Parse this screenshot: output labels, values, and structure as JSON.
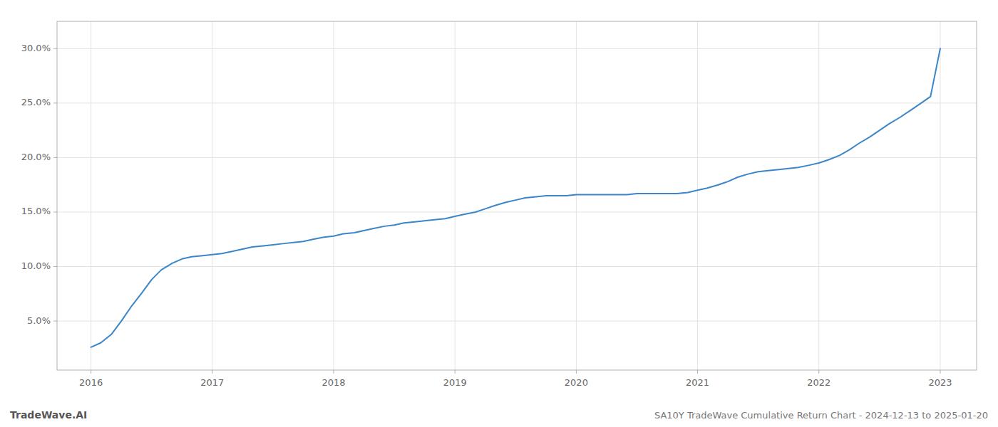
{
  "chart_data": {
    "type": "line",
    "title": "SA10Y TradeWave Cumulative Return Chart - 2024-12-13 to 2025-01-20",
    "annotations": [
      "TradeWave.AI"
    ],
    "color": "#3a86c8",
    "grid": true,
    "x": [
      2016.0,
      2016.08,
      2016.17,
      2016.25,
      2016.33,
      2016.42,
      2016.5,
      2016.58,
      2016.67,
      2016.75,
      2016.83,
      2016.92,
      2017.0,
      2017.08,
      2017.17,
      2017.25,
      2017.33,
      2017.42,
      2017.5,
      2017.58,
      2017.67,
      2017.75,
      2017.83,
      2017.92,
      2018.0,
      2018.08,
      2018.17,
      2018.25,
      2018.33,
      2018.42,
      2018.5,
      2018.58,
      2018.67,
      2018.75,
      2018.83,
      2018.92,
      2019.0,
      2019.08,
      2019.17,
      2019.25,
      2019.33,
      2019.42,
      2019.5,
      2019.58,
      2019.67,
      2019.75,
      2019.83,
      2019.92,
      2020.0,
      2020.08,
      2020.17,
      2020.25,
      2020.33,
      2020.42,
      2020.5,
      2020.58,
      2020.67,
      2020.75,
      2020.83,
      2020.92,
      2021.0,
      2021.08,
      2021.17,
      2021.25,
      2021.33,
      2021.42,
      2021.5,
      2021.58,
      2021.67,
      2021.75,
      2021.83,
      2021.92,
      2022.0,
      2022.08,
      2022.17,
      2022.25,
      2022.33,
      2022.42,
      2022.5,
      2022.58,
      2022.67,
      2022.75,
      2022.83,
      2022.92,
      2023.0
    ],
    "values": [
      0.026,
      0.03,
      0.038,
      0.05,
      0.063,
      0.076,
      0.088,
      0.097,
      0.103,
      0.107,
      0.109,
      0.11,
      0.111,
      0.112,
      0.114,
      0.116,
      0.118,
      0.119,
      0.12,
      0.121,
      0.122,
      0.123,
      0.125,
      0.127,
      0.128,
      0.13,
      0.131,
      0.133,
      0.135,
      0.137,
      0.138,
      0.14,
      0.141,
      0.142,
      0.143,
      0.144,
      0.146,
      0.148,
      0.15,
      0.153,
      0.156,
      0.159,
      0.161,
      0.163,
      0.164,
      0.165,
      0.165,
      0.165,
      0.166,
      0.166,
      0.166,
      0.166,
      0.166,
      0.166,
      0.167,
      0.167,
      0.167,
      0.167,
      0.167,
      0.168,
      0.17,
      0.172,
      0.175,
      0.178,
      0.182,
      0.185,
      0.187,
      0.188,
      0.189,
      0.19,
      0.191,
      0.193,
      0.195,
      0.198,
      0.202,
      0.207,
      0.213,
      0.219,
      0.225,
      0.231,
      0.237,
      0.243,
      0.249,
      0.256,
      0.3
    ],
    "xlim": [
      2015.72,
      2023.3
    ],
    "xticks": [
      2016,
      2017,
      2018,
      2019,
      2020,
      2021,
      2022,
      2023
    ],
    "ylim": [
      0.005,
      0.325
    ],
    "yticks": [
      {
        "value": 0.05,
        "label": "5.0%"
      },
      {
        "value": 0.1,
        "label": "10.0%"
      },
      {
        "value": 0.15,
        "label": "15.0%"
      },
      {
        "value": 0.2,
        "label": "20.0%"
      },
      {
        "value": 0.25,
        "label": "25.0%"
      },
      {
        "value": 0.3,
        "label": "30.0%"
      }
    ]
  }
}
